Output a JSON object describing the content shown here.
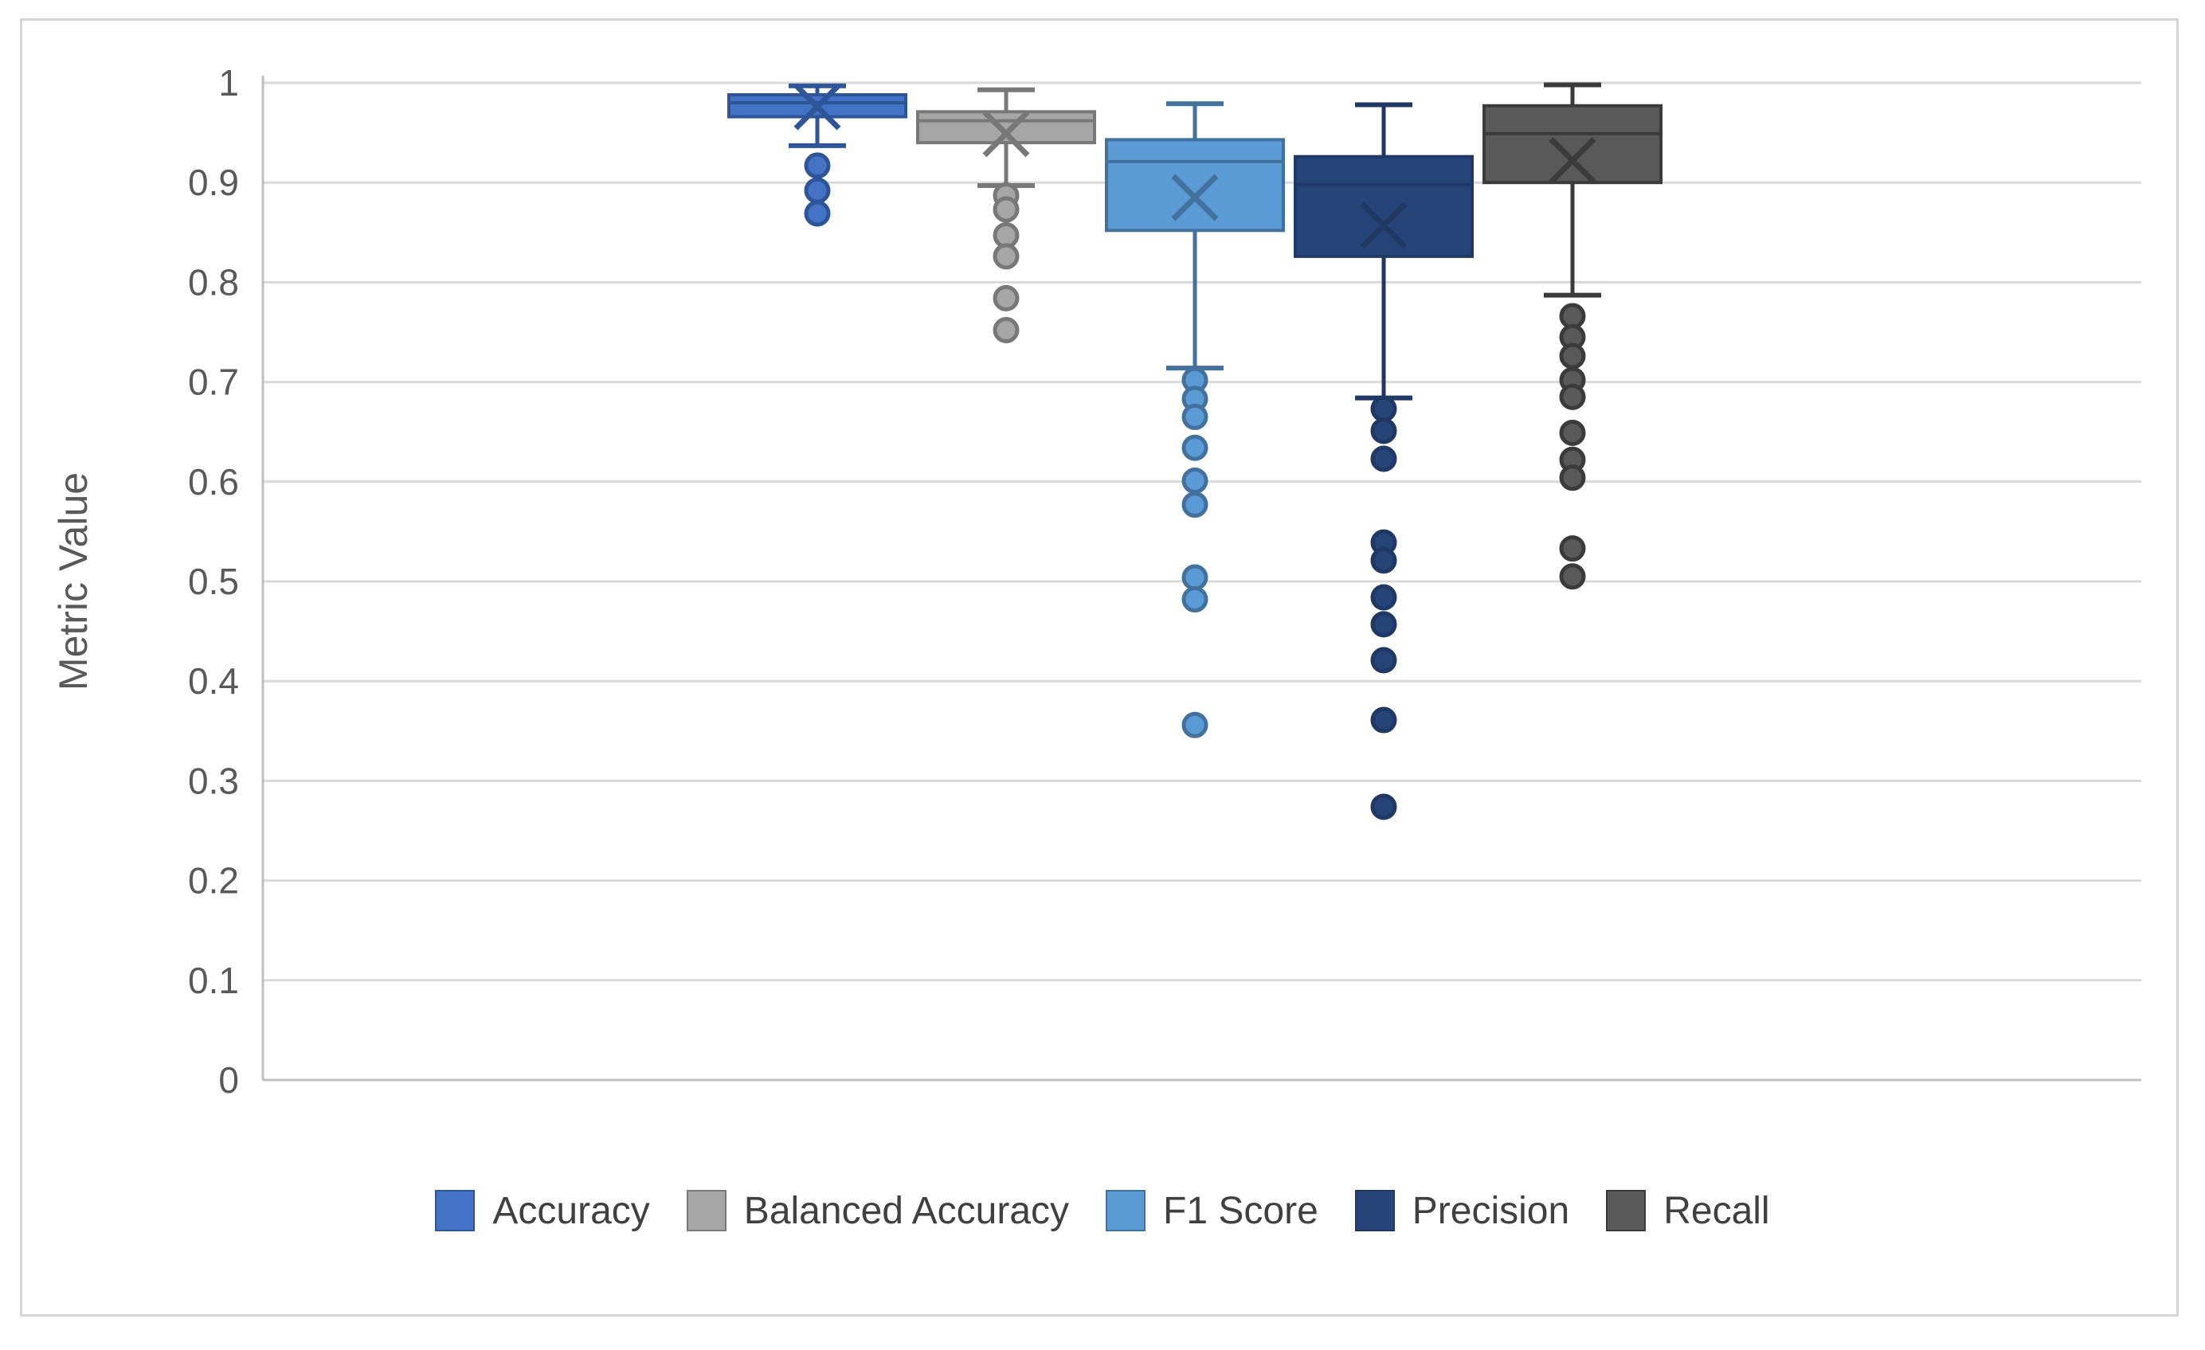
{
  "figure": {
    "background": "#FFFFFF",
    "frame_border_color": "#D6D6D6"
  },
  "axis": {
    "ylabel": "Metric Value",
    "tick_text_color": "#595959",
    "axis_line_color": "#BFBFBF",
    "gridline_color": "#D9D9D9"
  },
  "legend": {
    "position": "bottom",
    "text_color": "#404040"
  },
  "chart_data": {
    "type": "boxplot",
    "title": "",
    "xlabel": "",
    "ylabel": "Metric Value",
    "ylim": [
      0,
      1
    ],
    "grid": true,
    "legend_position": "bottom",
    "ytick_values": [
      1,
      0.9,
      0.8,
      0.7,
      0.6,
      0.5,
      0.4,
      0.3,
      0.2,
      0.1,
      0
    ],
    "ytick_labels": [
      "1",
      "0.9",
      "0.8",
      "0.7",
      "0.6",
      "0.5",
      "0.4",
      "0.3",
      "0.2",
      "0.1",
      "0"
    ],
    "series": [
      {
        "name": "Accuracy",
        "fill": "#4472C4",
        "border": "#2E5597",
        "whisker_high": 0.997,
        "q3": 0.988,
        "median": 0.98,
        "mean": 0.976,
        "q1": 0.966,
        "whisker_low": 0.937,
        "outliers": [
          0.917,
          0.892,
          0.869
        ]
      },
      {
        "name": "Balanced Accuracy",
        "fill": "#A6A6A6",
        "border": "#787878",
        "whisker_high": 0.993,
        "q3": 0.971,
        "median": 0.962,
        "mean": 0.949,
        "q1": 0.94,
        "whisker_low": 0.897,
        "outliers": [
          0.887,
          0.873,
          0.847,
          0.826,
          0.784,
          0.752
        ]
      },
      {
        "name": "F1 Score",
        "fill": "#5B9BD5",
        "border": "#41719C",
        "whisker_high": 0.979,
        "q3": 0.943,
        "median": 0.921,
        "mean": 0.885,
        "q1": 0.852,
        "whisker_low": 0.714,
        "outliers": [
          0.702,
          0.683,
          0.665,
          0.634,
          0.601,
          0.577,
          0.504,
          0.482,
          0.356
        ]
      },
      {
        "name": "Precision",
        "fill": "#264478",
        "border": "#1F3864",
        "whisker_high": 0.978,
        "q3": 0.926,
        "median": 0.898,
        "mean": 0.857,
        "q1": 0.826,
        "whisker_low": 0.684,
        "outliers": [
          0.673,
          0.651,
          0.623,
          0.539,
          0.521,
          0.484,
          0.457,
          0.421,
          0.361,
          0.274
        ]
      },
      {
        "name": "Recall",
        "fill": "#595959",
        "border": "#3B3B3B",
        "whisker_high": 0.998,
        "q3": 0.977,
        "median": 0.949,
        "mean": 0.922,
        "q1": 0.9,
        "whisker_low": 0.787,
        "outliers": [
          0.766,
          0.745,
          0.726,
          0.702,
          0.685,
          0.649,
          0.622,
          0.604,
          0.533,
          0.505
        ]
      }
    ]
  }
}
